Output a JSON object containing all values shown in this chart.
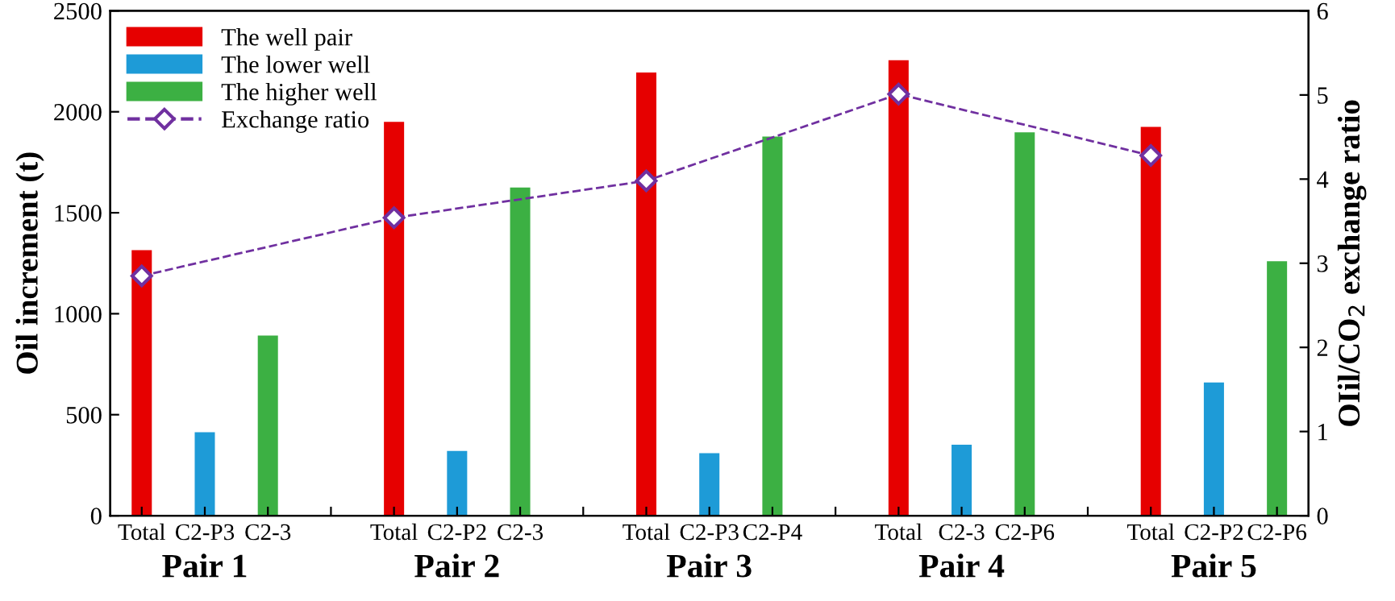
{
  "chart_data": {
    "type": "bar",
    "xlabel": null,
    "ylabel": "Oil increment (t)",
    "y2label": "OIil/CO$_{2}$ exchange ratio",
    "categories": [
      "Total",
      "C2-P3",
      "C2-3",
      null,
      "Total",
      "C2-P2",
      "C2-3",
      null,
      "Total",
      "C2-P3",
      "C2-P4",
      null,
      "Total",
      "C2-3",
      "C2-P6",
      null,
      "Total",
      "C2-P2",
      "C2-P6"
    ],
    "series": [
      {
        "name": "The well pair",
        "color": "#e60000",
        "values": [
          1315,
          null,
          null,
          null,
          1950,
          null,
          null,
          null,
          2195,
          null,
          null,
          null,
          2255,
          null,
          null,
          null,
          1925,
          null,
          null
        ]
      },
      {
        "name": "The lower well",
        "color": "#1e9bd7",
        "values": [
          null,
          413,
          null,
          null,
          null,
          320,
          null,
          null,
          null,
          309,
          null,
          null,
          null,
          351,
          null,
          null,
          null,
          660,
          null
        ]
      },
      {
        "name": "The higher well",
        "color": "#3cb043",
        "values": [
          null,
          null,
          892,
          null,
          null,
          null,
          1625,
          null,
          null,
          null,
          1877,
          null,
          null,
          null,
          1898,
          null,
          null,
          null,
          1260
        ]
      },
      {
        "name": "Exchange ratio",
        "type": "line",
        "axis": "y2",
        "color": "#7030a0",
        "marker": "diamond",
        "line_style": "dashed",
        "values": [
          2.85,
          null,
          null,
          null,
          3.54,
          null,
          null,
          null,
          3.98,
          null,
          null,
          null,
          5.01,
          null,
          null,
          null,
          4.28,
          null,
          null
        ]
      }
    ],
    "annotations": [
      "Pair 1",
      "Pair 2",
      "Pair 3",
      "Pair 4",
      "Pair 5"
    ],
    "ylim": [
      0,
      2500
    ],
    "yticks": [
      0,
      500,
      1000,
      1500,
      2000,
      2500
    ],
    "y2lim": [
      0,
      6
    ],
    "y2ticks": [
      0,
      1,
      2,
      3,
      4,
      5,
      6
    ],
    "legend": "top left",
    "grid": false
  }
}
